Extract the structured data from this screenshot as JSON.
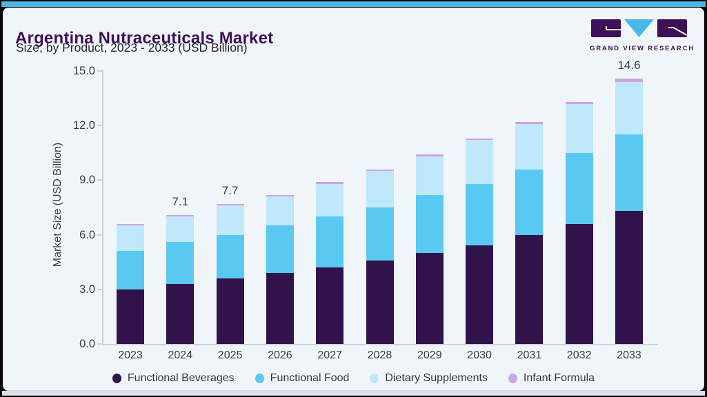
{
  "header": {
    "title": "Argentina Nutraceuticals Market",
    "subtitle": "Size, by Product, 2023 - 2033 (USD Billion)"
  },
  "logo": {
    "text": "GRAND VIEW RESEARCH"
  },
  "colors": {
    "accent_top_bar": "#49b8e8",
    "title_purple": "#3d1058",
    "card_background": "#f0f5fa",
    "axis_gray": "#cdd2da",
    "logo_purple": "#3d1058",
    "logo_cyan": "#49b8e8"
  },
  "chart_data": {
    "type": "bar",
    "stacked": true,
    "title": "Argentina Nutraceuticals Market Size, by Product, 2023 - 2033 (USD Billion)",
    "xlabel": "",
    "ylabel": "Market Size (USD Billion)",
    "ylim": [
      0,
      15
    ],
    "yticks": [
      0,
      3,
      6,
      9,
      12,
      15
    ],
    "ytick_labels": [
      "0.0",
      "3.0",
      "6.0",
      "9.0",
      "12.0",
      "15.0"
    ],
    "grid": false,
    "legend_position": "bottom",
    "categories": [
      "2023",
      "2024",
      "2025",
      "2026",
      "2027",
      "2028",
      "2029",
      "2030",
      "2031",
      "2032",
      "2033"
    ],
    "series": [
      {
        "name": "Functional Beverages",
        "color": "#31134b",
        "values": [
          3.0,
          3.3,
          3.6,
          3.9,
          4.2,
          4.6,
          5.0,
          5.4,
          6.0,
          6.6,
          7.3
        ]
      },
      {
        "name": "Functional Food",
        "color": "#5ac9f2",
        "values": [
          2.1,
          2.3,
          2.4,
          2.6,
          2.8,
          2.9,
          3.2,
          3.4,
          3.6,
          3.9,
          4.2
        ]
      },
      {
        "name": "Dietary Supplements",
        "color": "#bfe8fa",
        "values": [
          1.4,
          1.4,
          1.6,
          1.6,
          1.8,
          2.0,
          2.1,
          2.4,
          2.5,
          2.7,
          2.9
        ]
      },
      {
        "name": "Infant Formula",
        "color": "#d0a2e6",
        "values": [
          0.1,
          0.1,
          0.1,
          0.1,
          0.1,
          0.1,
          0.1,
          0.1,
          0.1,
          0.1,
          0.2
        ]
      }
    ],
    "totals": [
      6.6,
      7.1,
      7.7,
      8.2,
      8.9,
      9.6,
      10.4,
      11.3,
      12.2,
      13.3,
      14.6
    ],
    "bar_labels": [
      "",
      "7.1",
      "7.7",
      "",
      "",
      "",
      "",
      "",
      "",
      "",
      "14.6"
    ]
  }
}
